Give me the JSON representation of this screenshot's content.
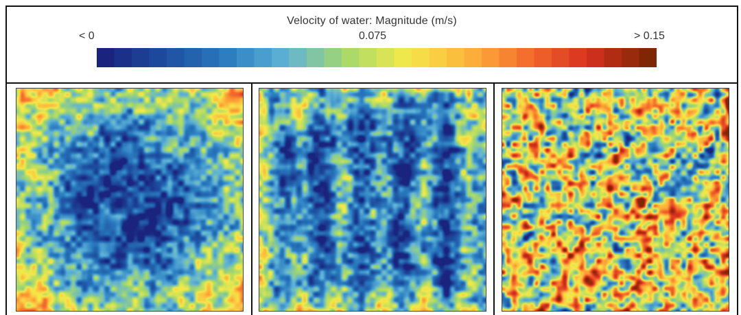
{
  "legend": {
    "title": "Velocity of water: Magnitude (m/s)",
    "min_label": "< 0",
    "mid_label": "0.075",
    "max_label": "> 0.15",
    "range": [
      0,
      0.15
    ],
    "colormap": [
      "#1a237e",
      "#1e4fa0",
      "#2a7cc0",
      "#5fb3d6",
      "#a6d96a",
      "#f4e94a",
      "#fdb53b",
      "#f46d2c",
      "#d7301f",
      "#7f2704"
    ],
    "step_count": 32
  },
  "panels": [
    {
      "id": "panel-1",
      "pattern": "low velocity center, higher velocity at edges and corners",
      "mean_level": 0.28,
      "variation": 0.3
    },
    {
      "id": "panel-2",
      "pattern": "vertical stripes of low velocity separated by higher velocity bands",
      "mean_level": 0.3,
      "variation": 0.32
    },
    {
      "id": "panel-3",
      "pattern": "high velocity throughout with scattered low velocity patches",
      "mean_level": 0.66,
      "variation": 0.3
    }
  ]
}
